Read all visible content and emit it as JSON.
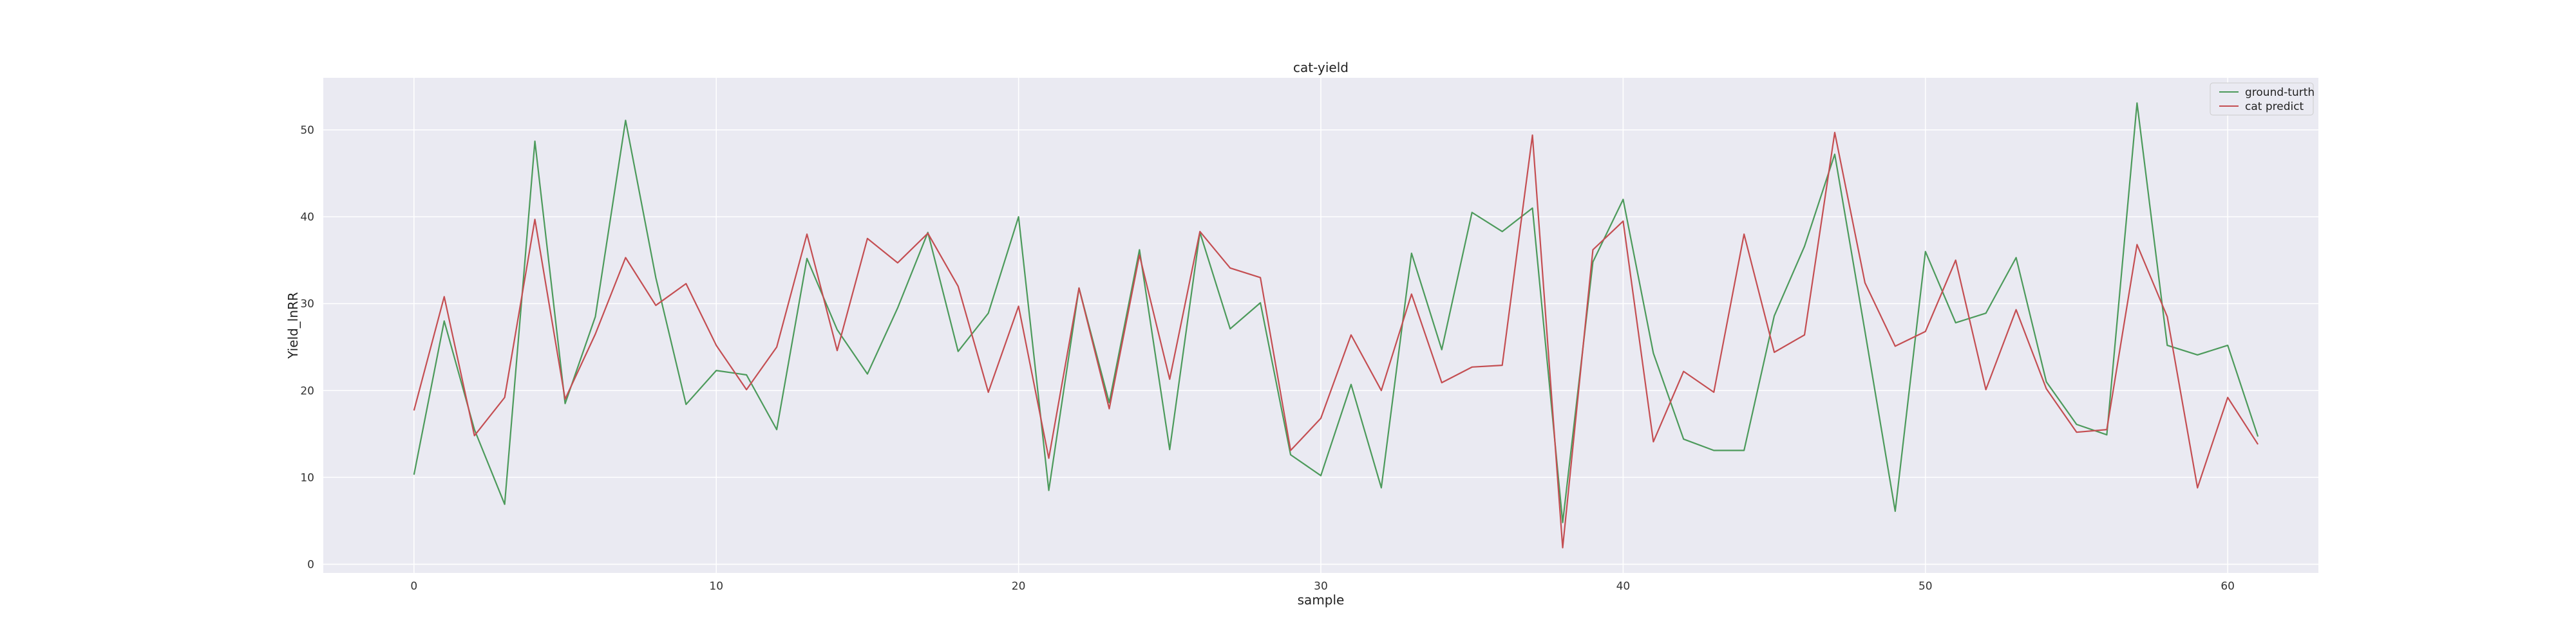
{
  "chart_data": {
    "type": "line",
    "title": "cat-yield",
    "xlabel": "sample",
    "ylabel": "Yield_lnRR",
    "xlim": [
      -3,
      63
    ],
    "ylim": [
      -1,
      56
    ],
    "xticks": [
      0,
      10,
      20,
      30,
      40,
      50,
      60
    ],
    "yticks": [
      0,
      10,
      20,
      30,
      40,
      50
    ],
    "grid": true,
    "legend_position": "top-right",
    "x": [
      0,
      1,
      2,
      3,
      4,
      5,
      6,
      7,
      8,
      9,
      10,
      11,
      12,
      13,
      14,
      15,
      16,
      17,
      18,
      19,
      20,
      21,
      22,
      23,
      24,
      25,
      26,
      27,
      28,
      29,
      30,
      31,
      32,
      33,
      34,
      35,
      36,
      37,
      38,
      39,
      40,
      41,
      42,
      43,
      44,
      45,
      46,
      47,
      48,
      49,
      50,
      51,
      52,
      53,
      54,
      55,
      56,
      57,
      58,
      59,
      60,
      61
    ],
    "series": [
      {
        "name": "ground-turth",
        "color": "#4c9a5b",
        "values": [
          10.3,
          28.0,
          15.5,
          6.9,
          48.7,
          18.5,
          28.5,
          51.1,
          33.0,
          18.4,
          22.3,
          21.8,
          15.5,
          35.2,
          27.0,
          21.9,
          29.5,
          38.2,
          24.5,
          28.9,
          40.0,
          8.5,
          31.8,
          18.6,
          36.2,
          13.2,
          38.2,
          27.1,
          30.1,
          12.6,
          10.2,
          20.7,
          8.8,
          35.8,
          24.7,
          40.5,
          38.3,
          41.0,
          4.8,
          34.8,
          42.0,
          24.3,
          14.4,
          13.1,
          13.1,
          28.6,
          36.6,
          47.2,
          26.8,
          6.1,
          36.0,
          27.8,
          28.9,
          35.3,
          21.0,
          16.1,
          14.9,
          53.1,
          25.2,
          24.1,
          25.2,
          14.7
        ]
      },
      {
        "name": "cat predict",
        "color": "#c44e52",
        "values": [
          17.7,
          30.8,
          14.8,
          19.2,
          39.7,
          19.0,
          26.5,
          35.3,
          29.8,
          32.3,
          25.2,
          20.1,
          25.0,
          38.0,
          24.6,
          37.5,
          34.7,
          38.1,
          32.0,
          19.8,
          29.7,
          12.2,
          31.8,
          17.9,
          35.6,
          21.3,
          38.3,
          34.1,
          33.0,
          13.1,
          16.8,
          26.4,
          20.0,
          31.1,
          20.9,
          22.7,
          22.9,
          49.4,
          1.9,
          36.2,
          39.5,
          14.1,
          22.2,
          19.8,
          38.0,
          24.4,
          26.4,
          49.7,
          32.4,
          25.1,
          26.8,
          35.0,
          20.1,
          29.3,
          20.2,
          15.2,
          15.5,
          36.8,
          28.5,
          8.8,
          19.2,
          13.8
        ]
      }
    ]
  }
}
